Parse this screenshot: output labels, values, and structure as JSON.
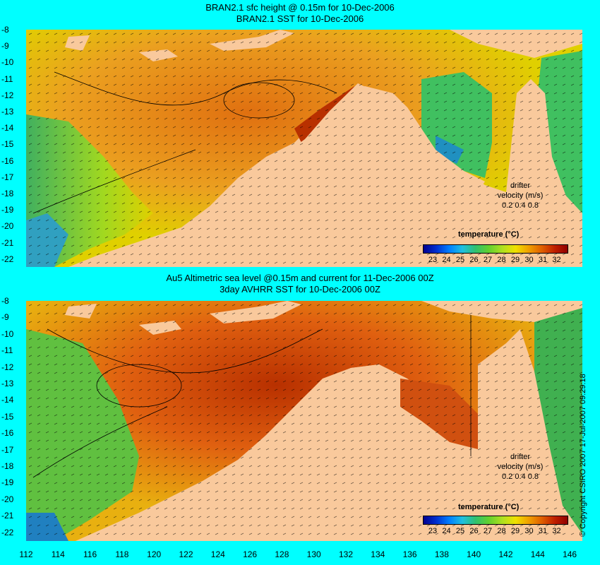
{
  "panel_top": {
    "title_line1": "BRAN2.1 sfc height @ 0.15m for 10-Dec-2006",
    "title_line2": "BRAN2.1 SST for 10-Dec-2006",
    "legend_title": "temperature (°C)",
    "drifter_label1": "drifter",
    "drifter_label2": "velocity (m/s)",
    "drifter_scale": "0.2 0.4 0.8"
  },
  "panel_bottom": {
    "title_line1": "Au5 Altimetric sea level  @0.15m and current for 11-Dec-2006 00Z",
    "title_line2": "3day AVHRR SST for 10-Dec-2006 00Z",
    "legend_title": "temperature (°C)",
    "drifter_label1": "drifter",
    "drifter_label2": "velocity (m/s)",
    "drifter_scale": "0.2 0.4 0.8"
  },
  "colorbar_ticks": [
    "23",
    "24",
    "25",
    "26",
    "27",
    "28",
    "29",
    "30",
    "31",
    "32"
  ],
  "colorbar_colors": [
    "#000090",
    "#0030d0",
    "#0080ff",
    "#20c0e0",
    "#30c070",
    "#60d030",
    "#b0e020",
    "#f0e000",
    "#f0a000",
    "#e06000",
    "#c02000",
    "#900000"
  ],
  "y_ticks": [
    "-8",
    "-9",
    "-10",
    "-11",
    "-12",
    "-13",
    "-14",
    "-15",
    "-16",
    "-17",
    "-18",
    "-19",
    "-20",
    "-21",
    "-22"
  ],
  "x_ticks": [
    "112",
    "114",
    "116",
    "118",
    "120",
    "122",
    "124",
    "126",
    "128",
    "130",
    "132",
    "134",
    "136",
    "138",
    "140",
    "142",
    "144",
    "146"
  ],
  "copyright": "© Copyright CSIRO 2007  17-Jul-2007 09:29:18",
  "colors": {
    "frame": "#00ffff",
    "land": "#f9c99c",
    "warm": "#e88a10",
    "hot": "#b83000",
    "cool": "#40c060"
  }
}
